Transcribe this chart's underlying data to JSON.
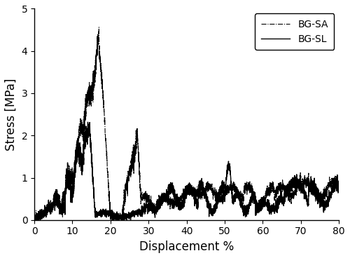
{
  "title": "",
  "xlabel": "Displacement %",
  "ylabel": "Stress [MPa]",
  "xlim": [
    0,
    80
  ],
  "ylim": [
    0,
    5
  ],
  "xticks": [
    0,
    10,
    20,
    30,
    40,
    50,
    60,
    70,
    80
  ],
  "yticks": [
    0,
    1,
    2,
    3,
    4,
    5
  ],
  "legend_labels": [
    "BG-SA",
    "BG-SL"
  ],
  "line_color": "#000000",
  "bg_color": "#ffffff",
  "figsize": [
    5.0,
    3.68
  ],
  "dpi": 100
}
